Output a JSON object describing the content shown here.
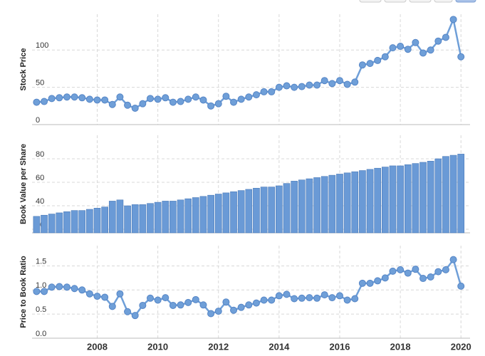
{
  "chart_data": [
    {
      "type": "line",
      "y_label": "Stock Price",
      "color": "#6f9fd8",
      "x": [
        2006,
        2006.25,
        2006.5,
        2006.75,
        2007,
        2007.25,
        2007.5,
        2007.75,
        2008,
        2008.25,
        2008.5,
        2008.75,
        2009,
        2009.25,
        2009.5,
        2009.75,
        2010,
        2010.25,
        2010.5,
        2010.75,
        2011,
        2011.25,
        2011.5,
        2011.75,
        2012,
        2012.25,
        2012.5,
        2012.75,
        2013,
        2013.25,
        2013.5,
        2013.75,
        2014,
        2014.25,
        2014.5,
        2014.75,
        2015,
        2015.25,
        2015.5,
        2015.75,
        2016,
        2016.25,
        2016.5,
        2016.75,
        2017,
        2017.25,
        2017.5,
        2017.75,
        2018,
        2018.25,
        2018.5,
        2018.75,
        2019,
        2019.25,
        2019.5,
        2019.75,
        2020
      ],
      "values": [
        30,
        31,
        35,
        36,
        37,
        37,
        36,
        34,
        33,
        33,
        27,
        37,
        26,
        22,
        28,
        35,
        34,
        36,
        30,
        31,
        34,
        37,
        33,
        25,
        28,
        38,
        30,
        34,
        37,
        40,
        44,
        44,
        50,
        52,
        50,
        51,
        53,
        53,
        59,
        55,
        59,
        54,
        57,
        80,
        82,
        86,
        91,
        103,
        105,
        101,
        110,
        96,
        100,
        112,
        117,
        141,
        91
      ],
      "xlim": [
        2005.85,
        2020.3
      ],
      "xticks": [
        2008,
        2010,
        2012,
        2014,
        2016,
        2018,
        2020
      ],
      "ylim": [
        0,
        148
      ],
      "yticks": [
        0,
        50,
        100
      ],
      "grid": true
    },
    {
      "type": "bar",
      "y_label": "Book Value per Share",
      "color": "#6a9ad6",
      "x": [
        2006,
        2006.25,
        2006.5,
        2006.75,
        2007,
        2007.25,
        2007.5,
        2007.75,
        2008,
        2008.25,
        2008.5,
        2008.75,
        2009,
        2009.25,
        2009.5,
        2009.75,
        2010,
        2010.25,
        2010.5,
        2010.75,
        2011,
        2011.25,
        2011.5,
        2011.75,
        2012,
        2012.25,
        2012.5,
        2012.75,
        2013,
        2013.25,
        2013.5,
        2013.75,
        2014,
        2014.25,
        2014.5,
        2014.75,
        2015,
        2015.25,
        2015.5,
        2015.75,
        2016,
        2016.25,
        2016.5,
        2016.75,
        2017,
        2017.25,
        2017.5,
        2017.75,
        2018,
        2018.25,
        2018.5,
        2018.75,
        2019,
        2019.25,
        2019.5,
        2019.75,
        2020
      ],
      "values": [
        31,
        32,
        33,
        34,
        35,
        36,
        36,
        37,
        38,
        39,
        44,
        45,
        40,
        41,
        41,
        42,
        43,
        44,
        44,
        45,
        46,
        47,
        48,
        49,
        50,
        51,
        52,
        53,
        54,
        55,
        56,
        56,
        57,
        59,
        61,
        62,
        63,
        64,
        65,
        66,
        67,
        68,
        69,
        70,
        71,
        72,
        73,
        74,
        74,
        75,
        76,
        77,
        78,
        80,
        82,
        83,
        84
      ],
      "xlim": [
        2005.85,
        2020.3
      ],
      "xticks": [
        2008,
        2010,
        2012,
        2014,
        2016,
        2018,
        2020
      ],
      "ylim": [
        17,
        100
      ],
      "yticks": [
        20,
        40,
        60,
        80
      ],
      "grid": true
    },
    {
      "type": "line",
      "y_label": "Price to Book Ratio",
      "color": "#6f9fd8",
      "x": [
        2006,
        2006.25,
        2006.5,
        2006.75,
        2007,
        2007.25,
        2007.5,
        2007.75,
        2008,
        2008.25,
        2008.5,
        2008.75,
        2009,
        2009.25,
        2009.5,
        2009.75,
        2010,
        2010.25,
        2010.5,
        2010.75,
        2011,
        2011.25,
        2011.5,
        2011.75,
        2012,
        2012.25,
        2012.5,
        2012.75,
        2013,
        2013.25,
        2013.5,
        2013.75,
        2014,
        2014.25,
        2014.5,
        2014.75,
        2015,
        2015.25,
        2015.5,
        2015.75,
        2016,
        2016.25,
        2016.5,
        2016.75,
        2017,
        2017.25,
        2017.5,
        2017.75,
        2018,
        2018.25,
        2018.5,
        2018.75,
        2019,
        2019.25,
        2019.5,
        2019.75,
        2020
      ],
      "values": [
        0.97,
        0.97,
        1.06,
        1.07,
        1.06,
        1.03,
        1.0,
        0.92,
        0.87,
        0.85,
        0.66,
        0.92,
        0.55,
        0.47,
        0.68,
        0.83,
        0.79,
        0.84,
        0.68,
        0.69,
        0.74,
        0.8,
        0.69,
        0.51,
        0.56,
        0.75,
        0.58,
        0.64,
        0.69,
        0.73,
        0.79,
        0.79,
        0.88,
        0.91,
        0.82,
        0.83,
        0.84,
        0.83,
        0.9,
        0.84,
        0.88,
        0.79,
        0.82,
        1.14,
        1.14,
        1.19,
        1.25,
        1.39,
        1.42,
        1.35,
        1.43,
        1.24,
        1.27,
        1.38,
        1.42,
        1.63,
        1.08
      ],
      "xlim": [
        2005.85,
        2020.3
      ],
      "xticks": [
        2008,
        2010,
        2012,
        2014,
        2016,
        2018,
        2020
      ],
      "ylim": [
        0,
        1.92
      ],
      "yticks": [
        {
          "value": 0,
          "label": "0.0"
        },
        0.5,
        {
          "value": 1,
          "label": "1.0"
        },
        1.5
      ],
      "grid": true
    }
  ]
}
